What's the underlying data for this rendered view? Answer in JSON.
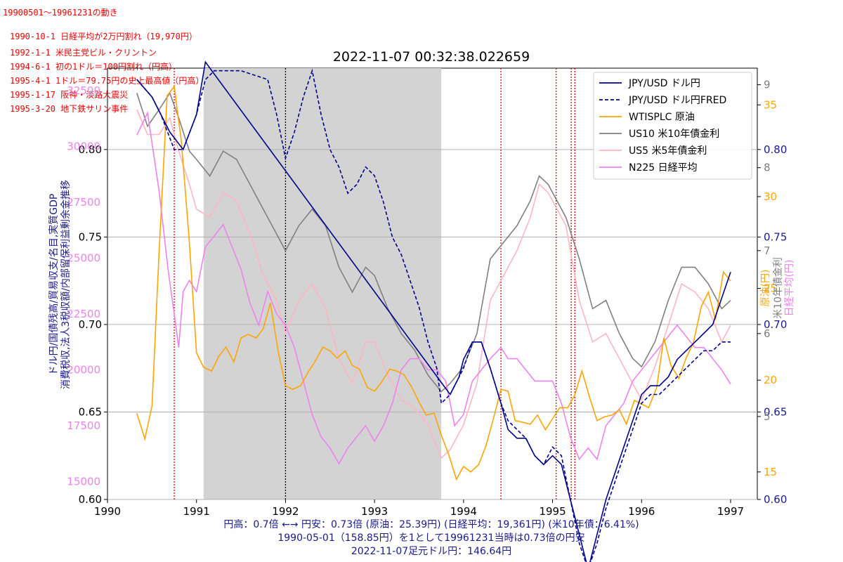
{
  "header": {
    "period": "19900501～19961231の動き",
    "events": [
      "1990-10-1 日経平均が2万円割れ（19,970円）",
      "1992-1-1 米民主党ビル・クリントン",
      "1994-6-1 初の1ドル＝100円割れ（円高）",
      "1995-4-1 1ドル＝79.75円の史上最高値（円高）",
      "1995-1-17 阪神・淡路大震災",
      "1995-3-20 地下鉄サリン事件"
    ]
  },
  "footer": {
    "line1": "円高：0.7倍 ←→ 円安：0.73倍 (原油：25.39円) (日経平均：19,361円) (米10年債：6.41%)",
    "line2": "1990-05-01（158.85円）を1として19961231当時は0.73倍の円安",
    "line3": "2022-11-07足元ドル円：146.64円"
  },
  "chart_data": {
    "type": "line",
    "title": "2022-11-07 00:32:38.022659",
    "x_ticks": [
      "1990",
      "1991",
      "1992",
      "1993",
      "1994",
      "1995",
      "1996",
      "1997"
    ],
    "xlim": [
      1990.0,
      1997.3
    ],
    "left_axis": {
      "label": "ドル円/国債残高/貿易収支/名目,実質GDP\n消費税収,法人3税収額/内部留保利益剰余金推移",
      "color": "#1a1a8c",
      "ticks": [
        0.6,
        0.65,
        0.7,
        0.75,
        0.8
      ],
      "tick_labels": [
        "0.60",
        "0.65",
        "0.70",
        "0.75",
        "0.80"
      ],
      "ylim": [
        0.6,
        0.8465
      ]
    },
    "left_axis_n225": {
      "color": "#ee82ee",
      "ticks": [
        15000,
        17500,
        20000,
        22500,
        25000,
        27500,
        30000,
        32500
      ],
      "tick_labels": [
        "15000",
        "17500",
        "20000",
        "22500",
        "25000",
        "27500",
        "30000",
        "32500"
      ],
      "ylim": [
        14200,
        33500
      ]
    },
    "right_axis": {
      "color": "#1a1a8c",
      "ticks": [
        0.6,
        0.65,
        0.7,
        0.75,
        0.8
      ],
      "tick_labels": [
        "0.60",
        "0.65",
        "0.70",
        "0.75",
        "0.80"
      ]
    },
    "right_axis_us10": {
      "label": "米10年債金利",
      "color": "#808080",
      "ticks": [
        5,
        6,
        7,
        8,
        9
      ],
      "tick_labels": [
        "5",
        "6",
        "7",
        "8",
        "9"
      ],
      "ylim": [
        4.0,
        9.2
      ]
    },
    "right_axis_oil": {
      "label": "原油(円)",
      "color": "#ffa500",
      "ticks": [
        15,
        20,
        25,
        30,
        35
      ],
      "tick_labels": [
        "15",
        "20",
        "25",
        "30",
        "35"
      ],
      "ylim": [
        13.5,
        37.0
      ]
    },
    "right_axis_n225_label": {
      "label": "日経平均(円)",
      "color": "#ee82ee"
    },
    "shaded_period": [
      1991.08,
      1993.75
    ],
    "vlines": [
      {
        "x": 1990.75,
        "color": "#ee0000",
        "style": "dotted"
      },
      {
        "x": 1992.0,
        "color": "#000000",
        "style": "dotted"
      },
      {
        "x": 1994.42,
        "color": "#ee0000",
        "style": "dotted"
      },
      {
        "x": 1995.04,
        "color": "#ee0000",
        "style": "dotted"
      },
      {
        "x": 1995.21,
        "color": "#ee0000",
        "style": "dotted"
      },
      {
        "x": 1995.25,
        "color": "#ee0000",
        "style": "dotted"
      }
    ],
    "legend_position": "top-right",
    "series": [
      {
        "name": "JPY/USD ドル円",
        "color": "#00008b",
        "dash": "solid",
        "axis": "left",
        "x": [
          1990.33,
          1990.5,
          1990.6,
          1990.7,
          1990.85,
          1991.0,
          1991.1,
          1993.85,
          1993.95,
          1994.0,
          1994.1,
          1994.2,
          1994.3,
          1994.42,
          1994.5,
          1994.6,
          1994.7,
          1994.8,
          1994.9,
          1995.0,
          1995.1,
          1995.2,
          1995.3,
          1995.4,
          1995.5,
          1995.6,
          1995.7,
          1995.8,
          1995.9,
          1996.0,
          1996.1,
          1996.2,
          1996.3,
          1996.4,
          1996.5,
          1996.6,
          1996.7,
          1996.8,
          1996.9,
          1997.0
        ],
        "values": [
          0.84,
          0.83,
          0.82,
          0.81,
          0.8,
          0.82,
          0.85,
          0.66,
          0.67,
          0.68,
          0.69,
          0.69,
          0.675,
          0.655,
          0.64,
          0.635,
          0.635,
          0.625,
          0.62,
          0.625,
          0.62,
          0.6,
          0.58,
          0.56,
          0.58,
          0.6,
          0.615,
          0.63,
          0.645,
          0.66,
          0.665,
          0.665,
          0.67,
          0.68,
          0.685,
          0.69,
          0.695,
          0.7,
          0.715,
          0.73
        ]
      },
      {
        "name": "JPY/USD ドル円FRED",
        "color": "#00008b",
        "dash": "dashed",
        "axis": "left",
        "x": [
          1990.33,
          1990.5,
          1990.6,
          1990.75,
          1990.85,
          1991.0,
          1991.1,
          1991.2,
          1991.5,
          1991.8,
          1991.9,
          1992.0,
          1992.1,
          1992.2,
          1992.3,
          1992.4,
          1992.5,
          1992.6,
          1992.7,
          1992.8,
          1992.9,
          1993.0,
          1993.1,
          1993.2,
          1993.3,
          1993.4,
          1993.5,
          1993.6,
          1993.7,
          1993.75,
          1993.85,
          1993.95,
          1994.0,
          1994.1,
          1994.2,
          1994.3,
          1994.42,
          1994.5,
          1994.6,
          1994.7,
          1994.8,
          1994.9,
          1995.0,
          1995.1,
          1995.2,
          1995.3,
          1995.4,
          1995.5,
          1995.6,
          1995.7,
          1995.8,
          1995.9,
          1996.0,
          1996.1,
          1996.2,
          1996.3,
          1996.4,
          1996.5,
          1996.6,
          1996.7,
          1996.8,
          1996.9,
          1997.0
        ],
        "values": [
          0.84,
          0.83,
          0.82,
          0.8,
          0.8,
          0.82,
          0.84,
          0.845,
          0.845,
          0.84,
          0.82,
          0.795,
          0.81,
          0.83,
          0.845,
          0.82,
          0.8,
          0.79,
          0.775,
          0.78,
          0.79,
          0.785,
          0.77,
          0.75,
          0.74,
          0.725,
          0.71,
          0.69,
          0.675,
          0.655,
          0.66,
          0.67,
          0.675,
          0.69,
          0.69,
          0.675,
          0.655,
          0.645,
          0.64,
          0.635,
          0.625,
          0.62,
          0.63,
          0.625,
          0.6,
          0.575,
          0.56,
          0.575,
          0.595,
          0.61,
          0.625,
          0.64,
          0.655,
          0.66,
          0.66,
          0.665,
          0.67,
          0.675,
          0.68,
          0.685,
          0.685,
          0.69,
          0.69
        ]
      },
      {
        "name": "WTISPLC 原油",
        "color": "#ffa500",
        "dash": "solid",
        "axis": "oil",
        "x": [
          1990.33,
          1990.42,
          1990.5,
          1990.58,
          1990.67,
          1990.75,
          1990.83,
          1990.92,
          1991.0,
          1991.08,
          1991.17,
          1991.25,
          1991.33,
          1991.42,
          1991.5,
          1991.58,
          1991.67,
          1991.75,
          1991.83,
          1991.92,
          1992.0,
          1992.08,
          1992.17,
          1992.25,
          1992.33,
          1992.42,
          1992.5,
          1992.58,
          1992.67,
          1992.75,
          1992.83,
          1992.92,
          1993.0,
          1993.08,
          1993.17,
          1993.25,
          1993.33,
          1993.42,
          1993.5,
          1993.58,
          1993.67,
          1993.75,
          1993.83,
          1993.92,
          1994.0,
          1994.08,
          1994.17,
          1994.25,
          1994.33,
          1994.42,
          1994.5,
          1994.58,
          1994.67,
          1994.75,
          1994.83,
          1994.92,
          1995.0,
          1995.08,
          1995.17,
          1995.25,
          1995.33,
          1995.42,
          1995.5,
          1995.58,
          1995.67,
          1995.75,
          1995.83,
          1995.92,
          1996.0,
          1996.08,
          1996.17,
          1996.25,
          1996.33,
          1996.42,
          1996.5,
          1996.58,
          1996.67,
          1996.75,
          1996.83,
          1996.92,
          1997.0
        ],
        "values": [
          18.2,
          16.8,
          18.6,
          27.0,
          35.5,
          36.0,
          33.0,
          27.5,
          21.5,
          20.7,
          20.5,
          21.3,
          21.8,
          21.0,
          22.3,
          22.5,
          22.3,
          22.8,
          24.2,
          21.5,
          19.7,
          19.5,
          19.7,
          20.4,
          21.0,
          21.8,
          21.6,
          21.2,
          21.6,
          20.8,
          20.6,
          19.6,
          19.4,
          19.9,
          20.6,
          20.5,
          20.3,
          19.6,
          18.8,
          18.1,
          18.2,
          17.0,
          16.0,
          14.6,
          15.3,
          15.0,
          15.4,
          16.4,
          17.8,
          19.5,
          19.4,
          17.8,
          17.7,
          17.6,
          18.1,
          17.3,
          17.9,
          18.5,
          18.5,
          19.2,
          20.5,
          19.0,
          17.8,
          18.0,
          18.1,
          18.4,
          17.6,
          18.9,
          18.7,
          18.5,
          19.6,
          22.3,
          20.8,
          20.1,
          21.2,
          22.0,
          24.0,
          24.8,
          23.3,
          25.9,
          25.4
        ]
      },
      {
        "name": "US10 米10年債金利",
        "color": "#808080",
        "dash": "solid",
        "axis": "us10",
        "x": [
          1990.33,
          1990.45,
          1990.58,
          1990.7,
          1990.8,
          1990.92,
          1991.0,
          1991.15,
          1991.3,
          1991.45,
          1991.6,
          1991.75,
          1991.9,
          1992.0,
          1992.15,
          1992.3,
          1992.45,
          1992.6,
          1992.75,
          1992.9,
          1993.0,
          1993.15,
          1993.3,
          1993.45,
          1993.6,
          1993.75,
          1993.85,
          1994.0,
          1994.15,
          1994.3,
          1994.45,
          1994.6,
          1994.75,
          1994.85,
          1994.95,
          1995.05,
          1995.15,
          1995.3,
          1995.45,
          1995.6,
          1995.75,
          1995.9,
          1996.0,
          1996.15,
          1996.3,
          1996.45,
          1996.6,
          1996.75,
          1996.9,
          1997.0
        ],
        "values": [
          8.9,
          8.5,
          8.7,
          8.9,
          8.6,
          8.2,
          8.1,
          7.9,
          8.2,
          8.1,
          7.8,
          7.5,
          7.2,
          7.0,
          7.3,
          7.5,
          7.3,
          6.8,
          6.5,
          6.8,
          6.7,
          6.3,
          6.0,
          5.8,
          5.5,
          5.3,
          5.4,
          5.6,
          6.0,
          6.9,
          7.1,
          7.3,
          7.6,
          7.9,
          7.8,
          7.6,
          7.4,
          6.9,
          6.3,
          6.4,
          6.0,
          5.7,
          5.6,
          5.9,
          6.4,
          6.8,
          6.8,
          6.6,
          6.3,
          6.4
        ]
      },
      {
        "name": "US5 米5年債金利",
        "color": "#ffb6c1",
        "dash": "solid",
        "axis": "us10",
        "x": [
          1990.33,
          1990.45,
          1990.58,
          1990.7,
          1990.8,
          1990.92,
          1991.0,
          1991.15,
          1991.3,
          1991.45,
          1991.6,
          1991.75,
          1991.9,
          1992.0,
          1992.15,
          1992.3,
          1992.45,
          1992.6,
          1992.75,
          1992.9,
          1993.0,
          1993.15,
          1993.3,
          1993.45,
          1993.6,
          1993.75,
          1993.85,
          1994.0,
          1994.15,
          1994.3,
          1994.45,
          1994.6,
          1994.75,
          1994.85,
          1994.95,
          1995.05,
          1995.15,
          1995.3,
          1995.45,
          1995.6,
          1995.75,
          1995.9,
          1996.0,
          1996.15,
          1996.3,
          1996.45,
          1996.6,
          1996.75,
          1996.9,
          1997.0
        ],
        "values": [
          8.7,
          8.4,
          8.4,
          8.6,
          8.2,
          7.8,
          7.5,
          7.4,
          7.7,
          7.6,
          7.2,
          6.7,
          6.4,
          6.0,
          6.4,
          6.6,
          6.3,
          5.7,
          5.4,
          5.9,
          5.9,
          5.5,
          5.2,
          5.1,
          4.9,
          4.5,
          4.6,
          4.9,
          5.4,
          6.4,
          6.7,
          7.0,
          7.4,
          7.8,
          7.7,
          7.5,
          7.3,
          6.4,
          5.9,
          6.0,
          5.7,
          5.4,
          5.2,
          5.6,
          6.1,
          6.6,
          6.5,
          6.3,
          5.9,
          6.1
        ]
      },
      {
        "name": "N225 日経平均",
        "color": "#ee82ee",
        "dash": "solid",
        "axis": "n225",
        "x": [
          1990.33,
          1990.45,
          1990.58,
          1990.68,
          1990.75,
          1990.8,
          1990.85,
          1990.92,
          1991.0,
          1991.1,
          1991.2,
          1991.3,
          1991.4,
          1991.5,
          1991.6,
          1991.7,
          1991.8,
          1991.9,
          1992.0,
          1992.1,
          1992.2,
          1992.3,
          1992.4,
          1992.5,
          1992.6,
          1992.7,
          1992.8,
          1992.9,
          1993.0,
          1993.1,
          1993.2,
          1993.3,
          1993.4,
          1993.5,
          1993.6,
          1993.7,
          1993.8,
          1993.9,
          1994.0,
          1994.1,
          1994.2,
          1994.3,
          1994.42,
          1994.5,
          1994.6,
          1994.7,
          1994.8,
          1994.9,
          1995.0,
          1995.1,
          1995.2,
          1995.3,
          1995.4,
          1995.5,
          1995.6,
          1995.7,
          1995.8,
          1995.9,
          1996.0,
          1996.1,
          1996.2,
          1996.3,
          1996.4,
          1996.5,
          1996.6,
          1996.7,
          1996.8,
          1996.9,
          1997.0
        ],
        "values": [
          30500,
          31500,
          28000,
          24500,
          22500,
          21000,
          23500,
          24000,
          23500,
          25500,
          26000,
          26500,
          25500,
          24500,
          23000,
          22000,
          23500,
          22500,
          22000,
          21000,
          19500,
          18000,
          17000,
          16500,
          15800,
          16500,
          17000,
          17500,
          16800,
          17500,
          18500,
          20000,
          20500,
          20500,
          20000,
          20000,
          19500,
          17500,
          18000,
          19500,
          20000,
          20500,
          21000,
          20500,
          20500,
          20000,
          19500,
          19500,
          19500,
          18500,
          17000,
          16000,
          16500,
          16000,
          17500,
          18000,
          18500,
          19500,
          20000,
          20500,
          21000,
          21500,
          22000,
          21500,
          21000,
          21000,
          20500,
          20000,
          19361
        ]
      }
    ]
  }
}
